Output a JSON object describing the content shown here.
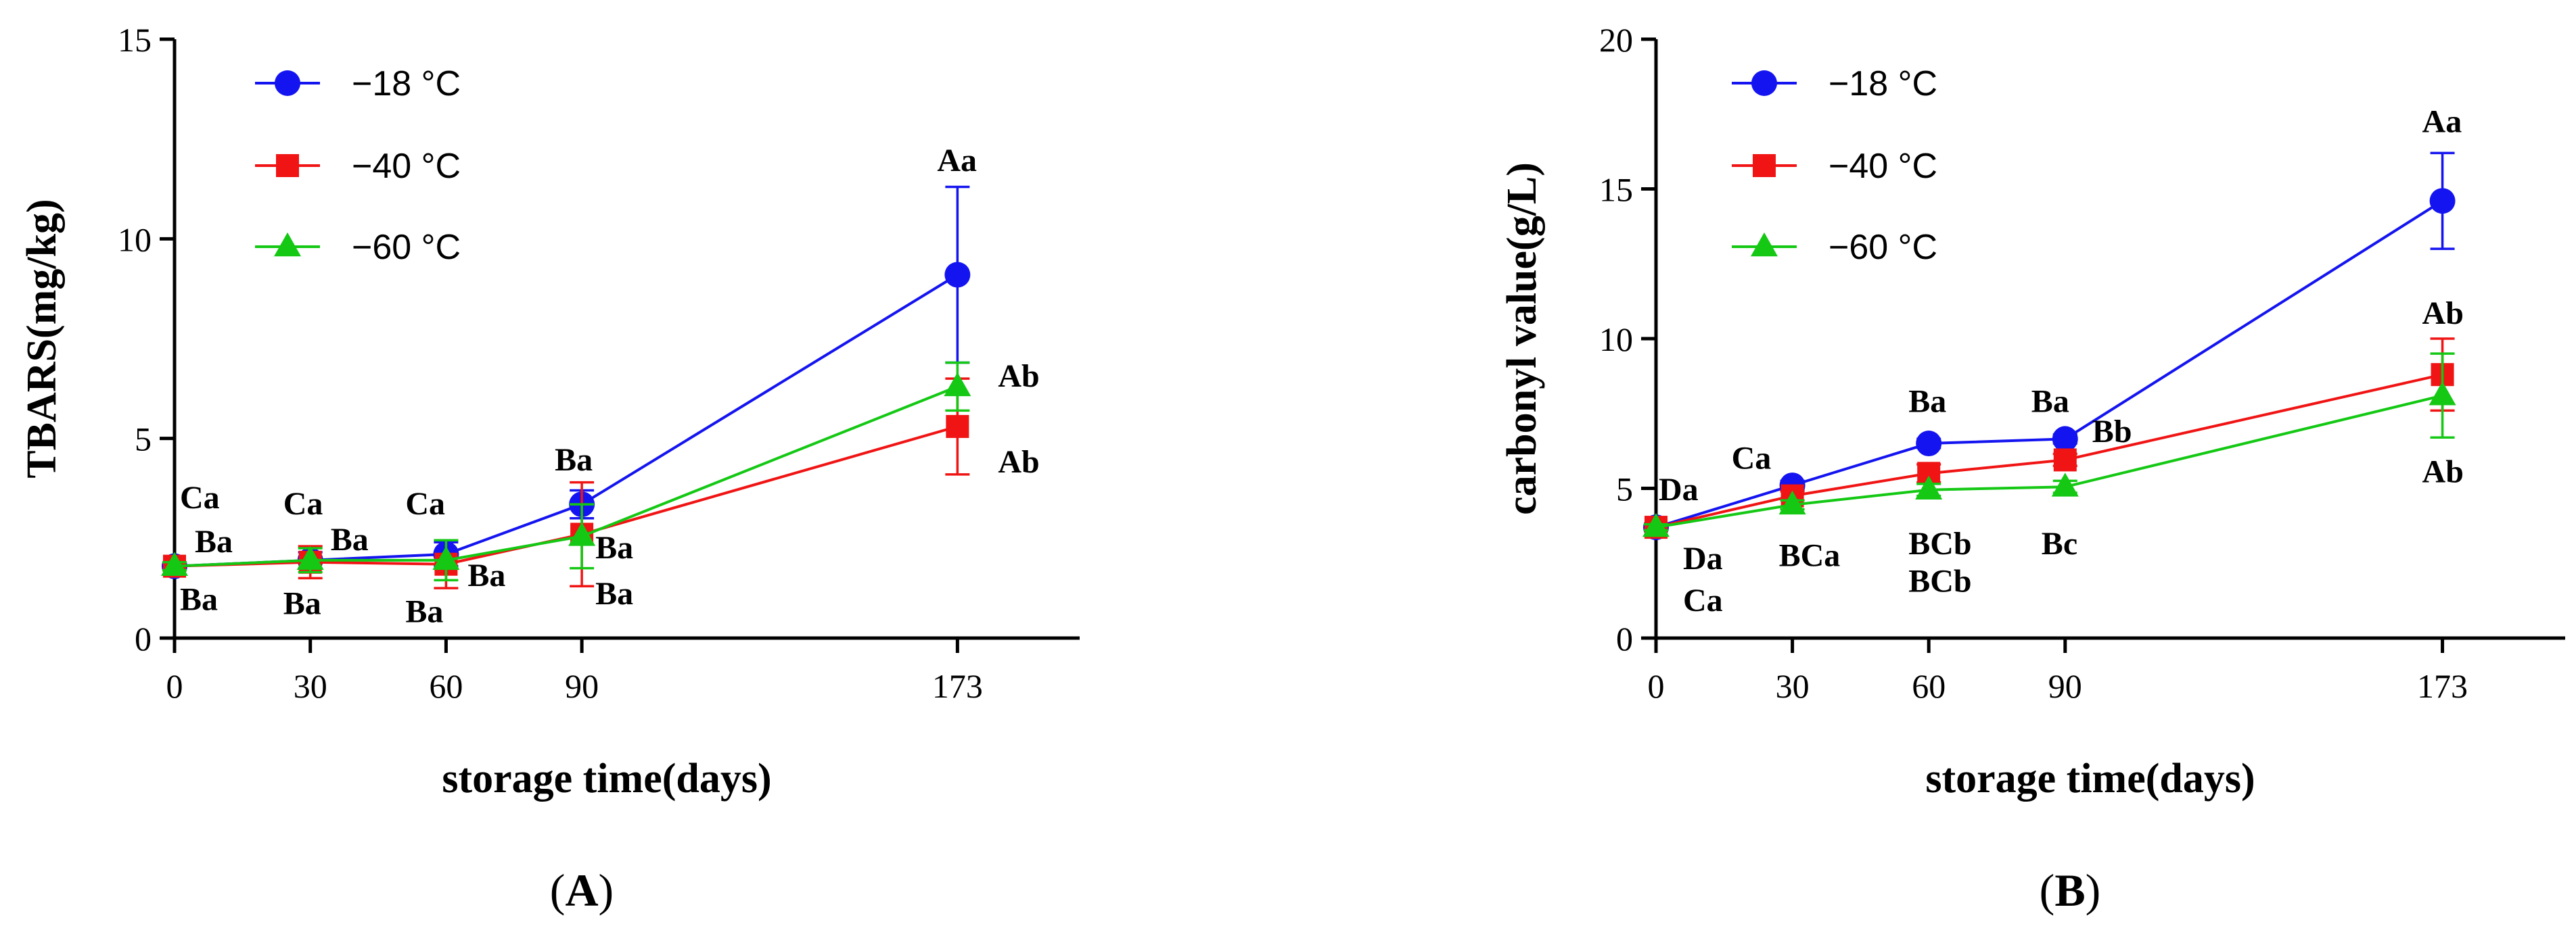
{
  "colors": {
    "s18": "#1414f0",
    "s40": "#f01414",
    "s60": "#14c814"
  },
  "chart_data": [
    {
      "type": "line",
      "panel_label": "A",
      "xlabel": "storage time(days)",
      "ylabel": "TBARS(mg/kg)",
      "x": [
        0,
        30,
        60,
        90,
        173
      ],
      "xticks": [
        "0",
        "30",
        "60",
        "90",
        "173"
      ],
      "xlim": [
        0,
        200
      ],
      "ylim": [
        0,
        15
      ],
      "yticks": [
        "0",
        "5",
        "10",
        "15"
      ],
      "grid": false,
      "legend": "top-left",
      "series": [
        {
          "name": "−18 °C",
          "marker": "circle",
          "values": [
            1.8,
            1.95,
            2.1,
            3.35,
            9.1
          ],
          "err": [
            0.1,
            0.2,
            0.3,
            0.35,
            2.2
          ]
        },
        {
          "name": "−40 °C",
          "marker": "square",
          "values": [
            1.8,
            1.9,
            1.85,
            2.6,
            5.3
          ],
          "err": [
            0.1,
            0.4,
            0.6,
            1.3,
            1.2
          ]
        },
        {
          "name": "−60 °C",
          "marker": "triangle",
          "values": [
            1.8,
            1.95,
            1.95,
            2.55,
            6.3
          ],
          "err": [
            0.1,
            0.3,
            0.5,
            0.8,
            0.6
          ]
        }
      ],
      "annotations": [
        {
          "text": "Ca",
          "x": 0,
          "y": 3.25
        },
        {
          "text": "Ba",
          "x": 0,
          "y": 2.15
        },
        {
          "text": "Ba",
          "x": 0,
          "y": 0.7
        },
        {
          "text": "Ca",
          "x": 30,
          "y": 3.1
        },
        {
          "text": "Ba",
          "x": 30,
          "y": 2.2
        },
        {
          "text": "Ba",
          "x": 30,
          "y": 0.6
        },
        {
          "text": "Ca",
          "x": 60,
          "y": 3.1
        },
        {
          "text": "Ba",
          "x": 60,
          "y": 1.3
        },
        {
          "text": "Ba",
          "x": 60,
          "y": 0.4
        },
        {
          "text": "Ba",
          "x": 90,
          "y": 4.2
        },
        {
          "text": "Ba",
          "x": 90,
          "y": 2.0
        },
        {
          "text": "Ba",
          "x": 90,
          "y": 0.85
        },
        {
          "text": "Aa",
          "x": 173,
          "y": 11.7
        },
        {
          "text": "Ab",
          "x": 173,
          "y": 6.3
        },
        {
          "text": "Ab",
          "x": 173,
          "y": 4.15
        }
      ]
    },
    {
      "type": "line",
      "panel_label": "B",
      "xlabel": "storage time(days)",
      "ylabel": "carbonyl value(g/L)",
      "x": [
        0,
        30,
        60,
        90,
        173
      ],
      "xticks": [
        "0",
        "30",
        "60",
        "90",
        "173"
      ],
      "xlim": [
        0,
        200
      ],
      "ylim": [
        0,
        20
      ],
      "yticks": [
        "0",
        "5",
        "10",
        "15",
        "20"
      ],
      "grid": false,
      "legend": "top-left",
      "series": [
        {
          "name": "−18 °C",
          "marker": "circle",
          "values": [
            3.7,
            5.1,
            6.5,
            6.65,
            14.6
          ],
          "err": [
            0.1,
            0.15,
            0.15,
            0.15,
            1.6
          ]
        },
        {
          "name": "−40 °C",
          "marker": "square",
          "values": [
            3.7,
            4.75,
            5.5,
            5.95,
            8.8
          ],
          "err": [
            0.1,
            0.15,
            0.3,
            0.2,
            1.2
          ]
        },
        {
          "name": "−60 °C",
          "marker": "triangle",
          "values": [
            3.7,
            4.45,
            4.95,
            5.05,
            8.1
          ],
          "err": [
            0.1,
            0.15,
            0.2,
            0.2,
            1.4
          ]
        }
      ],
      "annotations": [
        {
          "text": "Da",
          "x": 0,
          "y": 4.6
        },
        {
          "text": "Da",
          "x": 0,
          "y": 2.3
        },
        {
          "text": "Ca",
          "x": 0,
          "y": 0.9
        },
        {
          "text": "Ca",
          "x": 30,
          "y": 5.65
        },
        {
          "text": "BCa",
          "x": 30,
          "y": 2.4
        },
        {
          "text": "Ba",
          "x": 60,
          "y": 7.55
        },
        {
          "text": "BCb",
          "x": 60,
          "y": 2.8
        },
        {
          "text": "BCb",
          "x": 60,
          "y": 1.55
        },
        {
          "text": "Ba",
          "x": 90,
          "y": 7.55
        },
        {
          "text": "Bb",
          "x": 90,
          "y": 6.55
        },
        {
          "text": "Bc",
          "x": 90,
          "y": 2.8
        },
        {
          "text": "Aa",
          "x": 173,
          "y": 16.9
        },
        {
          "text": "Ab",
          "x": 173,
          "y": 10.5
        },
        {
          "text": "Ab",
          "x": 173,
          "y": 5.2
        }
      ]
    }
  ]
}
